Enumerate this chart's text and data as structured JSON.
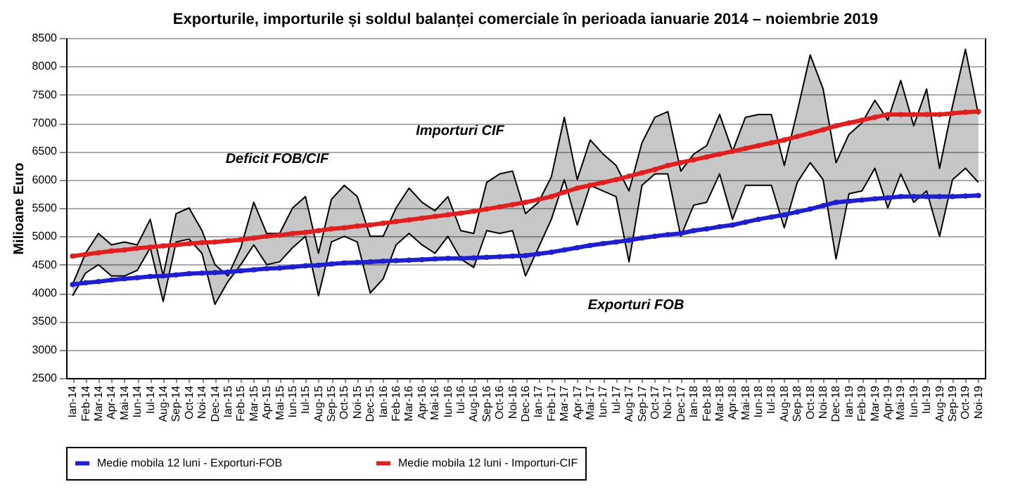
{
  "chart_data": {
    "type": "line",
    "title": "Exporturile, importurile și soldul balanței comerciale în perioada ianuarie 2014 – noiembrie 2019",
    "ylabel": "Milioane Euro",
    "categories": [
      "Ian-14",
      "Feb-14",
      "Mar-14",
      "Apr-14",
      "Mai-14",
      "Iun-14",
      "Iul-14",
      "Aug-14",
      "Sep-14",
      "Oct-14",
      "Noi-14",
      "Dec-14",
      "Ian-15",
      "Feb-15",
      "Mar-15",
      "Apr-15",
      "Mai-15",
      "Iun-15",
      "Iul-15",
      "Aug-15",
      "Sep-15",
      "Oct-15",
      "Noi-15",
      "Dec-15",
      "Ian-16",
      "Feb-16",
      "Mar-16",
      "Apr-16",
      "Mai-16",
      "Iun-16",
      "Iul-16",
      "Aug-16",
      "Sep-16",
      "Oct-16",
      "Noi-16",
      "Dec-16",
      "Ian-17",
      "Feb-17",
      "Mar-17",
      "Apr-17",
      "Mai-17",
      "Iun-17",
      "Iul-17",
      "Aug-17",
      "Sep-17",
      "Oct-17",
      "Noi-17",
      "Dec-17",
      "Ian-18",
      "Feb-18",
      "Mar-18",
      "Apr-18",
      "Mai-18",
      "Iun-18",
      "Iul-18",
      "Aug-18",
      "Sep-18",
      "Oct-18",
      "Noi-18",
      "Dec-18",
      "Ian-19",
      "Feb-19",
      "Mar-19",
      "Apr-19",
      "Mai-19",
      "Iun-19",
      "Iul-19",
      "Aug-19",
      "Sep-19",
      "Oct-19",
      "Noi-19"
    ],
    "series": [
      {
        "type": "line",
        "color": "#000000",
        "marker": "none",
        "lower": [
          3950,
          4350,
          4500,
          4300,
          4300,
          4400,
          4800,
          3850,
          4900,
          4950,
          4700,
          3800,
          4200,
          4500,
          4850,
          4500,
          4550,
          4800,
          5000,
          3950,
          4900,
          5000,
          4900,
          4000,
          4250,
          4850,
          5050,
          4850,
          4700,
          5000,
          4600,
          4450,
          5100,
          5050,
          5100,
          4300,
          4800,
          5300,
          6000,
          5200,
          5900,
          5800,
          5700,
          4550,
          5900,
          6100,
          6100,
          5000,
          5550,
          5600,
          6100,
          5300,
          5900,
          5900,
          5900,
          5150,
          5950,
          6300,
          6000,
          4600,
          5750,
          5800,
          6200,
          5500,
          6100,
          5600,
          5800,
          5000,
          6000,
          6200,
          5950
        ],
        "upper": [
          4150,
          4700,
          5050,
          4850,
          4900,
          4850,
          5300,
          4300,
          5400,
          5500,
          5100,
          4500,
          4300,
          4800,
          5600,
          5050,
          5050,
          5500,
          5700,
          4700,
          5650,
          5900,
          5700,
          5000,
          5000,
          5500,
          5850,
          5600,
          5450,
          5700,
          5100,
          5050,
          5950,
          6100,
          6150,
          5400,
          5600,
          6050,
          7100,
          6000,
          6700,
          6450,
          6250,
          5800,
          6650,
          7100,
          7200,
          6150,
          6450,
          6600,
          7150,
          6500,
          7100,
          7150,
          7150,
          6250,
          7200,
          8200,
          7600,
          6300,
          6800,
          7000,
          7400,
          7050,
          7750,
          6950,
          7600,
          6200,
          7300,
          8300,
          7150
        ],
        "values": [
          4150,
          4700,
          5050,
          4850,
          4900,
          4850,
          5300,
          4300,
          5400,
          5500,
          5100,
          4500,
          4300,
          4800,
          5600,
          5050,
          5050,
          5500,
          5700,
          4700,
          5650,
          5900,
          5700,
          5000,
          5000,
          5500,
          5850,
          5600,
          5450,
          5700,
          5100,
          5050,
          5950,
          6100,
          6150,
          5400,
          5600,
          6050,
          7100,
          6000,
          6700,
          6450,
          6250,
          5800,
          6650,
          7100,
          7200,
          6150,
          6450,
          6600,
          7150,
          6500,
          7100,
          7150,
          7150,
          6250,
          7200,
          8200,
          7600,
          6300,
          6800,
          7000,
          7400,
          7050,
          7750,
          6950,
          7600,
          6200,
          7300,
          8300,
          7150
        ]
      },
      {
        "color": "#000000",
        "marker": "none",
        "values": [
          3950,
          4350,
          4500,
          4300,
          4300,
          4400,
          4800,
          3850,
          4900,
          4950,
          4700,
          3800,
          4200,
          4500,
          4850,
          4500,
          4550,
          4800,
          5000,
          3950,
          4900,
          5000,
          4900,
          4000,
          4250,
          4850,
          5050,
          4850,
          4700,
          5000,
          4600,
          4450,
          5100,
          5050,
          5100,
          4300,
          4800,
          5300,
          6000,
          5200,
          5900,
          5800,
          5700,
          4550,
          5900,
          6100,
          6100,
          5000,
          5550,
          5600,
          6100,
          5300,
          5900,
          5900,
          5900,
          5150,
          5950,
          6300,
          6000,
          4600,
          5750,
          5800,
          6200,
          5500,
          6100,
          5600,
          5800,
          5000,
          6000,
          6200,
          5950
        ]
      },
      {
        "type": "line",
        "name": "Medie mobila 12 luni - Exporturi-FOB",
        "color": "#1f1fd0",
        "marker": "circle",
        "values": [
          4150,
          4180,
          4200,
          4230,
          4250,
          4270,
          4290,
          4300,
          4320,
          4340,
          4350,
          4360,
          4370,
          4390,
          4410,
          4430,
          4440,
          4460,
          4480,
          4490,
          4510,
          4530,
          4540,
          4550,
          4560,
          4570,
          4580,
          4590,
          4600,
          4610,
          4610,
          4620,
          4630,
          4640,
          4650,
          4660,
          4690,
          4720,
          4760,
          4800,
          4840,
          4870,
          4900,
          4930,
          4970,
          5000,
          5030,
          5050,
          5100,
          5130,
          5170,
          5200,
          5250,
          5300,
          5340,
          5380,
          5430,
          5480,
          5540,
          5600,
          5620,
          5640,
          5660,
          5680,
          5700,
          5700,
          5700,
          5700,
          5700,
          5710,
          5720
        ]
      },
      {
        "type": "line",
        "name": "Medie mobila 12 luni - Importuri-CIF",
        "color": "#e02020",
        "marker": "circle",
        "values": [
          4650,
          4680,
          4710,
          4740,
          4760,
          4790,
          4810,
          4830,
          4850,
          4870,
          4890,
          4900,
          4920,
          4940,
          4970,
          5000,
          5020,
          5050,
          5070,
          5100,
          5130,
          5150,
          5180,
          5200,
          5230,
          5260,
          5290,
          5320,
          5350,
          5380,
          5410,
          5440,
          5480,
          5520,
          5560,
          5600,
          5650,
          5700,
          5780,
          5850,
          5900,
          5950,
          6000,
          6060,
          6120,
          6180,
          6250,
          6300,
          6350,
          6400,
          6450,
          6500,
          6550,
          6600,
          6650,
          6700,
          6760,
          6820,
          6880,
          6950,
          7000,
          7050,
          7100,
          7150,
          7150,
          7150,
          7150,
          7150,
          7170,
          7190,
          7200
        ]
      }
    ],
    "annotations": [
      "Importuri CIF",
      "Deficit FOB/CIF",
      "Exporturi FOB"
    ],
    "ylim": [
      2500,
      8500
    ],
    "yticks": [
      2500,
      3000,
      3500,
      4000,
      4500,
      5000,
      5500,
      6000,
      6500,
      7000,
      7500,
      8000,
      8500
    ],
    "grid": "y",
    "legend": "bottom"
  }
}
